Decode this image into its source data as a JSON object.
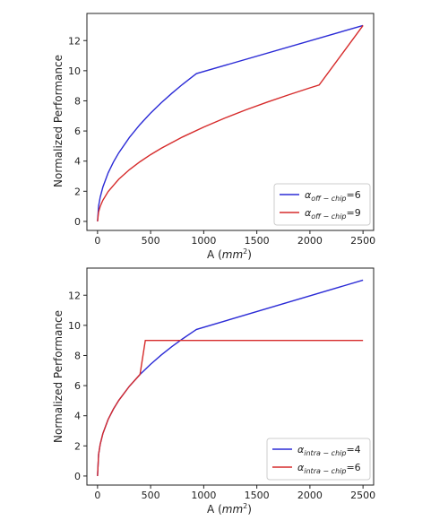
{
  "chart_data": [
    {
      "type": "line",
      "xlabel_prefix": "A (",
      "xlabel_unit": "mm",
      "xlabel_exp": "2",
      "xlabel_suffix": ")",
      "ylabel": "Normalized Performance",
      "xlim": [
        -100,
        2600
      ],
      "ylim": [
        -0.6,
        13.8
      ],
      "xticks": [
        0,
        500,
        1000,
        1500,
        2000,
        2500
      ],
      "yticks": [
        0,
        2,
        4,
        6,
        8,
        10,
        12
      ],
      "grid": false,
      "legend_position": "lower-right",
      "series": [
        {
          "name_symbol": "α",
          "name_sub": "off − chip",
          "name_value": "=6",
          "color": "#2b2bd6",
          "x": [
            0,
            10,
            25,
            50,
            100,
            150,
            200,
            300,
            400,
            500,
            600,
            700,
            800,
            900,
            932,
            2500
          ],
          "y": [
            0,
            1.02,
            1.6,
            2.27,
            3.22,
            3.94,
            4.55,
            5.57,
            6.43,
            7.19,
            7.87,
            8.5,
            9.09,
            9.64,
            9.81,
            13.0
          ]
        },
        {
          "name_symbol": "α",
          "name_sub": "off − chip",
          "name_value": "=9",
          "color": "#d62b2b",
          "x": [
            0,
            10,
            25,
            50,
            100,
            200,
            300,
            400,
            500,
            600,
            800,
            1000,
            1200,
            1400,
            1600,
            1800,
            2000,
            2087,
            2500
          ],
          "y": [
            0,
            0.63,
            0.99,
            1.4,
            1.98,
            2.8,
            3.43,
            3.96,
            4.43,
            4.85,
            5.6,
            6.26,
            6.86,
            7.41,
            7.92,
            8.4,
            8.86,
            9.05,
            13.0
          ]
        }
      ]
    },
    {
      "type": "line",
      "xlabel_prefix": "A (",
      "xlabel_unit": "mm",
      "xlabel_exp": "2",
      "xlabel_suffix": ")",
      "ylabel": "Normalized Performance",
      "xlim": [
        -100,
        2600
      ],
      "ylim": [
        -0.6,
        13.8
      ],
      "xticks": [
        0,
        500,
        1000,
        1500,
        2000,
        2500
      ],
      "yticks": [
        0,
        2,
        4,
        6,
        8,
        10,
        12
      ],
      "grid": false,
      "legend_position": "lower-right",
      "series": [
        {
          "name_symbol": "α",
          "name_sub": "intra − chip",
          "name_value": "=4",
          "color": "#2b2bd6",
          "x": [
            0,
            10,
            25,
            50,
            100,
            150,
            200,
            300,
            400,
            500,
            600,
            700,
            800,
            900,
            932,
            2500
          ],
          "y": [
            0,
            1.43,
            2.1,
            2.81,
            3.76,
            4.45,
            5.02,
            5.96,
            6.74,
            7.42,
            8.03,
            8.59,
            9.1,
            9.58,
            9.73,
            13.0
          ]
        },
        {
          "name_symbol": "α",
          "name_sub": "intra − chip",
          "name_value": "=6",
          "color": "#d62b2b",
          "x": [
            0,
            10,
            25,
            50,
            100,
            150,
            200,
            300,
            400,
            450,
            2500
          ],
          "y": [
            0,
            1.43,
            2.1,
            2.81,
            3.76,
            4.45,
            5.02,
            5.96,
            6.74,
            9.0,
            9.0
          ]
        }
      ]
    }
  ]
}
